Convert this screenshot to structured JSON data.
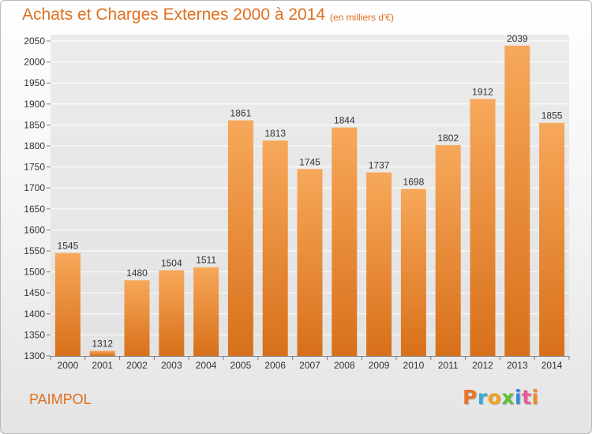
{
  "header": {
    "title": "Achats et Charges Externes 2000 à 2014",
    "unit": "(en milliers d'€)"
  },
  "footer": {
    "city": "PAIMPOL",
    "logo_letters": [
      "P",
      "r",
      "o",
      "x",
      "i",
      "t",
      "i"
    ],
    "logo_colors": [
      "#e8742a",
      "#3aa7d6",
      "#f0a020",
      "#5fbf3a",
      "#2a8fd6",
      "#e85a9a",
      "#f08a20"
    ]
  },
  "chart_data": {
    "type": "bar",
    "title": "Achats et Charges Externes 2000 à 2014",
    "subtitle": "(en milliers d'€)",
    "xlabel": "",
    "ylabel": "",
    "categories": [
      "2000",
      "2001",
      "2002",
      "2003",
      "2004",
      "2005",
      "2006",
      "2007",
      "2008",
      "2009",
      "2010",
      "2011",
      "2012",
      "2013",
      "2014"
    ],
    "values": [
      1545,
      1312,
      1480,
      1504,
      1511,
      1861,
      1813,
      1745,
      1844,
      1737,
      1698,
      1802,
      1912,
      2039,
      1855
    ],
    "ylim": [
      1300,
      2050
    ],
    "yticks": [
      1300,
      1350,
      1400,
      1450,
      1500,
      1550,
      1600,
      1650,
      1700,
      1750,
      1800,
      1850,
      1900,
      1950,
      2000,
      2050
    ],
    "grid": true,
    "bar_color": "#f08c30",
    "bar_color_light": "#f7a85a",
    "bar_color_dark": "#d8701a"
  }
}
